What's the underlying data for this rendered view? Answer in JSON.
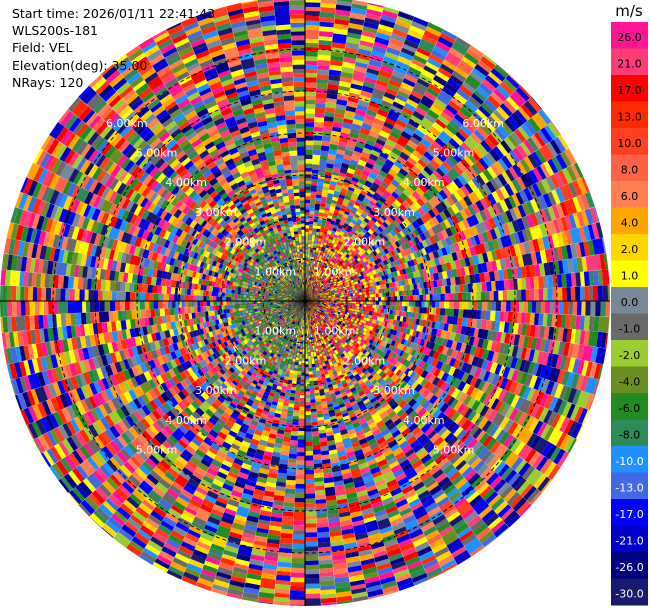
{
  "header": {
    "start_time": "Start time: 2026/01/11 22:41:43",
    "site": "WLS200s-181",
    "field": "Field: VEL",
    "elevation": "Elevation(deg): 35.00",
    "nrays": "NRays: 120"
  },
  "chart_data": {
    "type": "heatmap",
    "subtype": "polar-ppi",
    "field": "VEL",
    "nrays": 120,
    "elevation_deg": 35.0,
    "range_rings": [
      "1.00km",
      "2.00km",
      "3.00km",
      "4.00km",
      "5.00km",
      "6.00km"
    ],
    "range_ring_labels_visible": {
      "1.00km": [
        "1.00km",
        "1.00km",
        "1.00km",
        "1.00km"
      ],
      "2.00km": [
        "2.00km",
        "2.00km",
        "2.00km",
        "2.00km"
      ],
      "3.00km": [
        "3.00km",
        "3.00km",
        "3.00km",
        "3.00km"
      ],
      "4.00km": [
        "4.00km",
        "4.00km",
        "4.00km",
        "4.00km"
      ],
      "5.00km": [
        "5.00km",
        "5.00km",
        "5.00km",
        "5.00km"
      ],
      "6.00km": [
        "6.00km",
        "6.00km"
      ]
    },
    "colorbar": {
      "unit": "m/s",
      "ticks": [
        "26.0",
        "21.0",
        "17.0",
        "13.0",
        "10.0",
        "8.0",
        "6.0",
        "4.0",
        "2.0",
        "1.0",
        "0.0",
        "-1.0",
        "-2.0",
        "-4.0",
        "-6.0",
        "-8.0",
        "-10.0",
        "-13.0",
        "-17.0",
        "-21.0",
        "-26.0",
        "-30.0"
      ],
      "colors": [
        "#ff1493",
        "#ff3c78",
        "#ff0000",
        "#ff2a00",
        "#ff3f1f",
        "#ff6347",
        "#ff7f50",
        "#ffa500",
        "#ffd700",
        "#ffff00",
        "#778899",
        "#696969",
        "#9acd32",
        "#6b8e23",
        "#228b22",
        "#2e8b57",
        "#1e90ff",
        "#4169e1",
        "#0000ff",
        "#0000cd",
        "#000080",
        "#191970"
      ]
    },
    "near_field": {
      "east_sector": "positive",
      "west_sector": "negative"
    }
  }
}
